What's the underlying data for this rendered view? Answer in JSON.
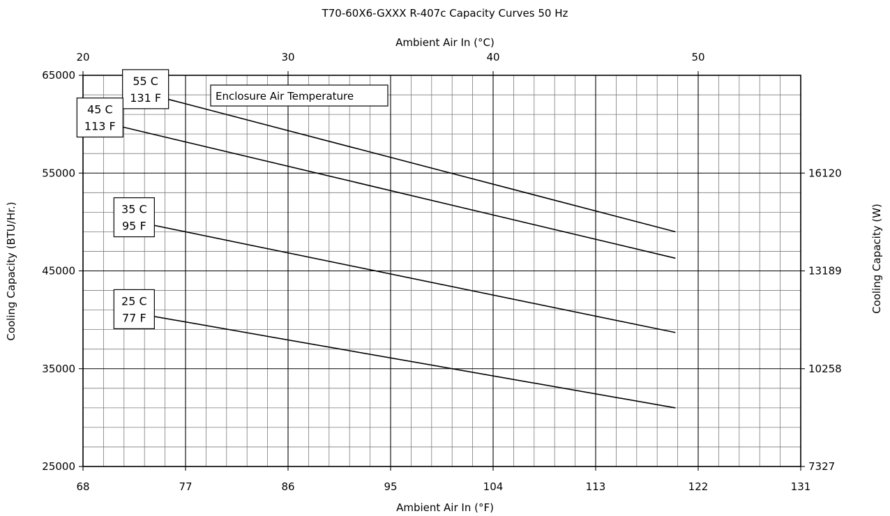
{
  "chart_data": {
    "type": "line",
    "title": "T70-60X6-GXXX R-407c Capacity Curves 50 Hz",
    "xlabel": "Ambient Air In (°F)",
    "x2label": "Ambient Air In (°C)",
    "ylabel": "Cooling Capacity (BTU/Hr.)",
    "y2label": "Cooling Capacity (W)",
    "xlim": [
      68,
      131
    ],
    "ylim": [
      25000,
      65000
    ],
    "x2lim": [
      20,
      55
    ],
    "x_ticks": [
      68,
      77,
      86,
      95,
      104,
      113,
      122,
      131
    ],
    "x2_ticks": [
      20,
      30,
      40,
      50
    ],
    "y_ticks": [
      25000,
      35000,
      45000,
      55000,
      65000
    ],
    "y2_ticks": [
      {
        "y": 25000,
        "label": "7327"
      },
      {
        "y": 35000,
        "label": "10258"
      },
      {
        "y": 45000,
        "label": "13189"
      },
      {
        "y": 55000,
        "label": "16120"
      }
    ],
    "grid": true,
    "legend_title": "Enclosure Air Temperature",
    "series": [
      {
        "name": "55 C\n131 F",
        "line1": "55 C",
        "line2": "131 F",
        "x": [
          73,
          120
        ],
        "y": [
          63300,
          49000
        ]
      },
      {
        "name": "45 C\n113 F",
        "line1": "45 C",
        "line2": "113 F",
        "x": [
          69,
          120
        ],
        "y": [
          60400,
          46300
        ]
      },
      {
        "name": "35 C\n95 F",
        "line1": "35 C",
        "line2": "95 F",
        "x": [
          72,
          120
        ],
        "y": [
          50200,
          38700
        ]
      },
      {
        "name": "25 C\n77 F",
        "line1": "25 C",
        "line2": "77 F",
        "x": [
          72,
          120
        ],
        "y": [
          40800,
          31000
        ]
      }
    ]
  }
}
